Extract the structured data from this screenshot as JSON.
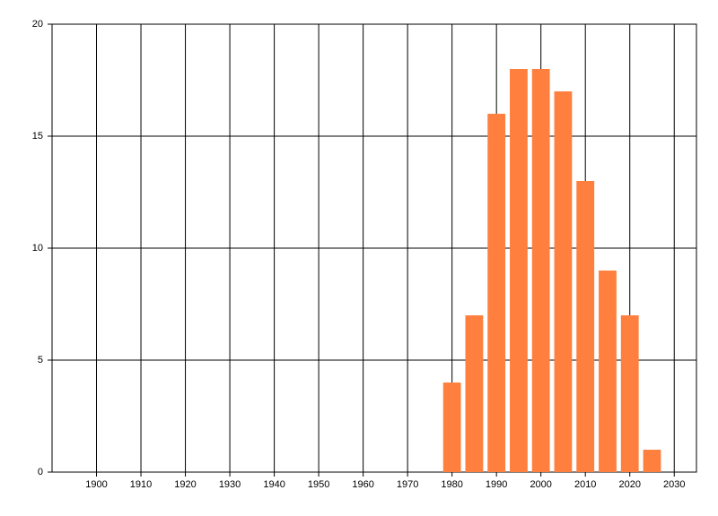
{
  "chart_data": {
    "type": "bar",
    "x": [
      1980,
      1985,
      1990,
      1995,
      2000,
      2005,
      2010,
      2015,
      2020,
      2025
    ],
    "values": [
      4,
      7,
      16,
      18,
      18,
      17,
      13,
      9,
      7,
      1
    ],
    "color": "#ff7f3f",
    "xlim": [
      1890,
      2035
    ],
    "xticks": [
      1900,
      1910,
      1920,
      1930,
      1940,
      1950,
      1960,
      1970,
      1980,
      1990,
      2000,
      2010,
      2020,
      2030
    ],
    "ylim": [
      0,
      20
    ],
    "yticks": [
      0,
      5,
      10,
      15,
      20
    ],
    "grid": true
  }
}
